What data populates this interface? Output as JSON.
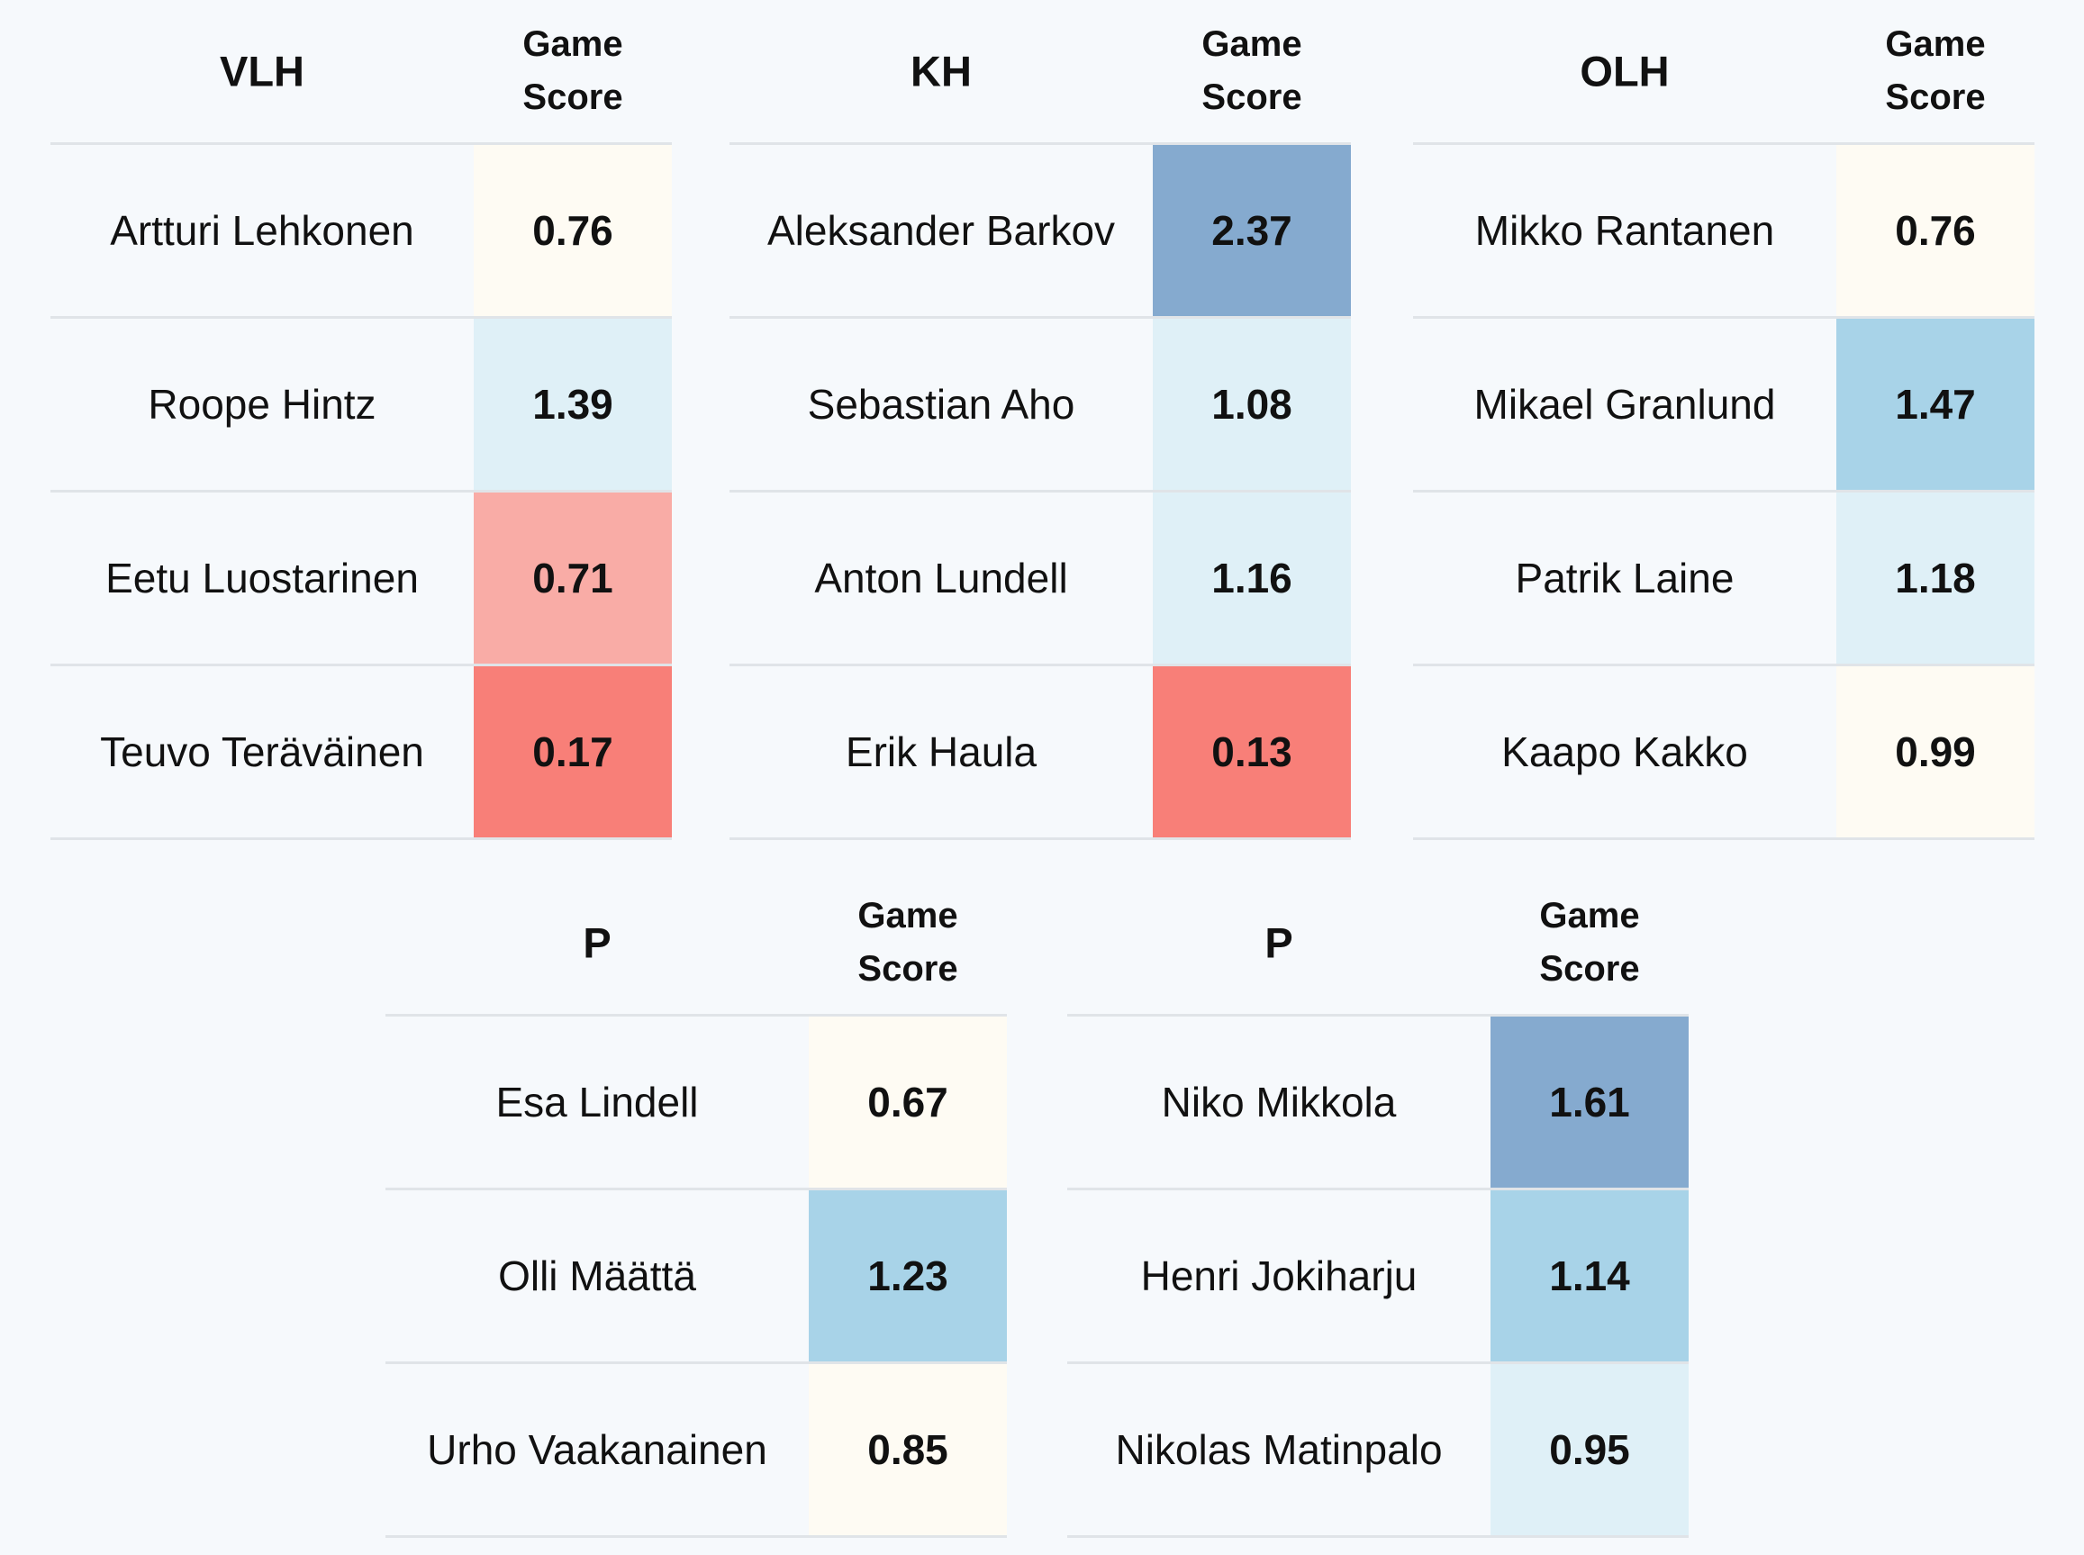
{
  "tables": [
    {
      "position": "VLH",
      "score_header": [
        "Game",
        "Score"
      ],
      "rows": [
        {
          "name": "Artturi Lehkonen",
          "score": "0.76",
          "color": "#fefbf3"
        },
        {
          "name": "Roope Hintz",
          "score": "1.39",
          "color": "#dff0f7"
        },
        {
          "name": "Eetu Luostarinen",
          "score": "0.71",
          "color": "#f9aca6"
        },
        {
          "name": "Teuvo Teräväinen",
          "score": "0.17",
          "color": "#f87f78"
        }
      ]
    },
    {
      "position": "KH",
      "score_header": [
        "Game",
        "Score"
      ],
      "rows": [
        {
          "name": "Aleksander Barkov",
          "score": "2.37",
          "color": "#85aacf"
        },
        {
          "name": "Sebastian Aho",
          "score": "1.08",
          "color": "#dff0f7"
        },
        {
          "name": "Anton Lundell",
          "score": "1.16",
          "color": "#dff0f7"
        },
        {
          "name": "Erik Haula",
          "score": "0.13",
          "color": "#f87f78"
        }
      ]
    },
    {
      "position": "OLH",
      "score_header": [
        "Game",
        "Score"
      ],
      "rows": [
        {
          "name": "Mikko Rantanen",
          "score": "0.76",
          "color": "#fefbf3"
        },
        {
          "name": "Mikael Granlund",
          "score": "1.47",
          "color": "#a8d3e8"
        },
        {
          "name": "Patrik Laine",
          "score": "1.18",
          "color": "#dff0f7"
        },
        {
          "name": "Kaapo Kakko",
          "score": "0.99",
          "color": "#fefbf3"
        }
      ]
    },
    {
      "position": "P",
      "score_header": [
        "Game",
        "Score"
      ],
      "rows": [
        {
          "name": "Esa Lindell",
          "score": "0.67",
          "color": "#fefbf3"
        },
        {
          "name": "Olli Määttä",
          "score": "1.23",
          "color": "#a8d3e8"
        },
        {
          "name": "Urho Vaakanainen",
          "score": "0.85",
          "color": "#fefbf3"
        }
      ]
    },
    {
      "position": "P",
      "score_header": [
        "Game",
        "Score"
      ],
      "rows": [
        {
          "name": "Niko Mikkola",
          "score": "1.61",
          "color": "#85aacf"
        },
        {
          "name": "Henri Jokiharju",
          "score": "1.14",
          "color": "#a8d3e8"
        },
        {
          "name": "Nikolas Matinpalo",
          "score": "0.95",
          "color": "#dff0f7"
        }
      ]
    }
  ]
}
